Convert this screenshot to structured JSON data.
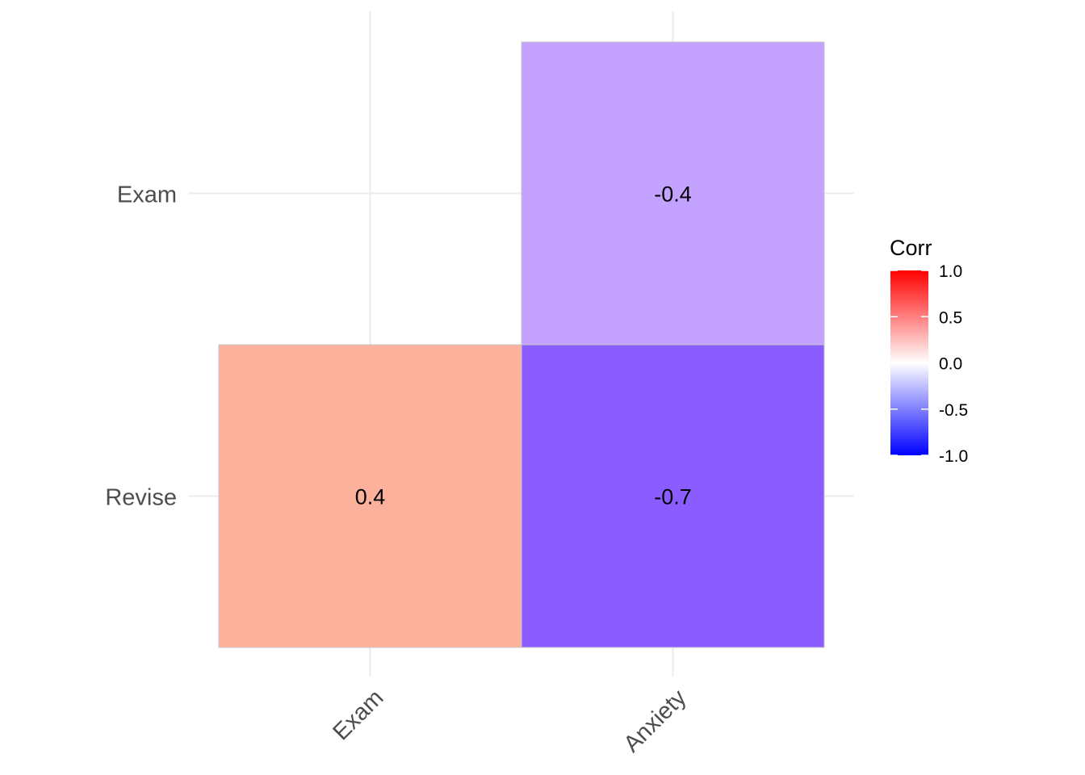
{
  "chart_data": {
    "type": "heatmap",
    "title": "",
    "xlabel": "",
    "ylabel": "",
    "x_categories": [
      "Exam",
      "Anxiety"
    ],
    "y_categories": [
      "Revise",
      "Exam"
    ],
    "cells": [
      {
        "x": "Exam",
        "y": "Revise",
        "value": 0.4,
        "label": "0.4",
        "color": "#FCB19C"
      },
      {
        "x": "Anxiety",
        "y": "Revise",
        "value": -0.7,
        "label": "-0.7",
        "color": "#8B5CFF"
      },
      {
        "x": "Anxiety",
        "y": "Exam",
        "value": -0.4,
        "label": "-0.4",
        "color": "#C4A2FF"
      }
    ],
    "legend": {
      "title": "Corr",
      "position": "right",
      "ticks": [
        "1.0",
        "0.5",
        "0.0",
        "-0.5",
        "-1.0"
      ],
      "tick_values": [
        1.0,
        0.5,
        0.0,
        -0.5,
        -1.0
      ],
      "range": [
        -1,
        1
      ],
      "colors": {
        "low": "#0000FF",
        "mid": "#FFFFFF",
        "high": "#FF0000"
      }
    },
    "grid": true,
    "x_tick_rotation": "45"
  }
}
